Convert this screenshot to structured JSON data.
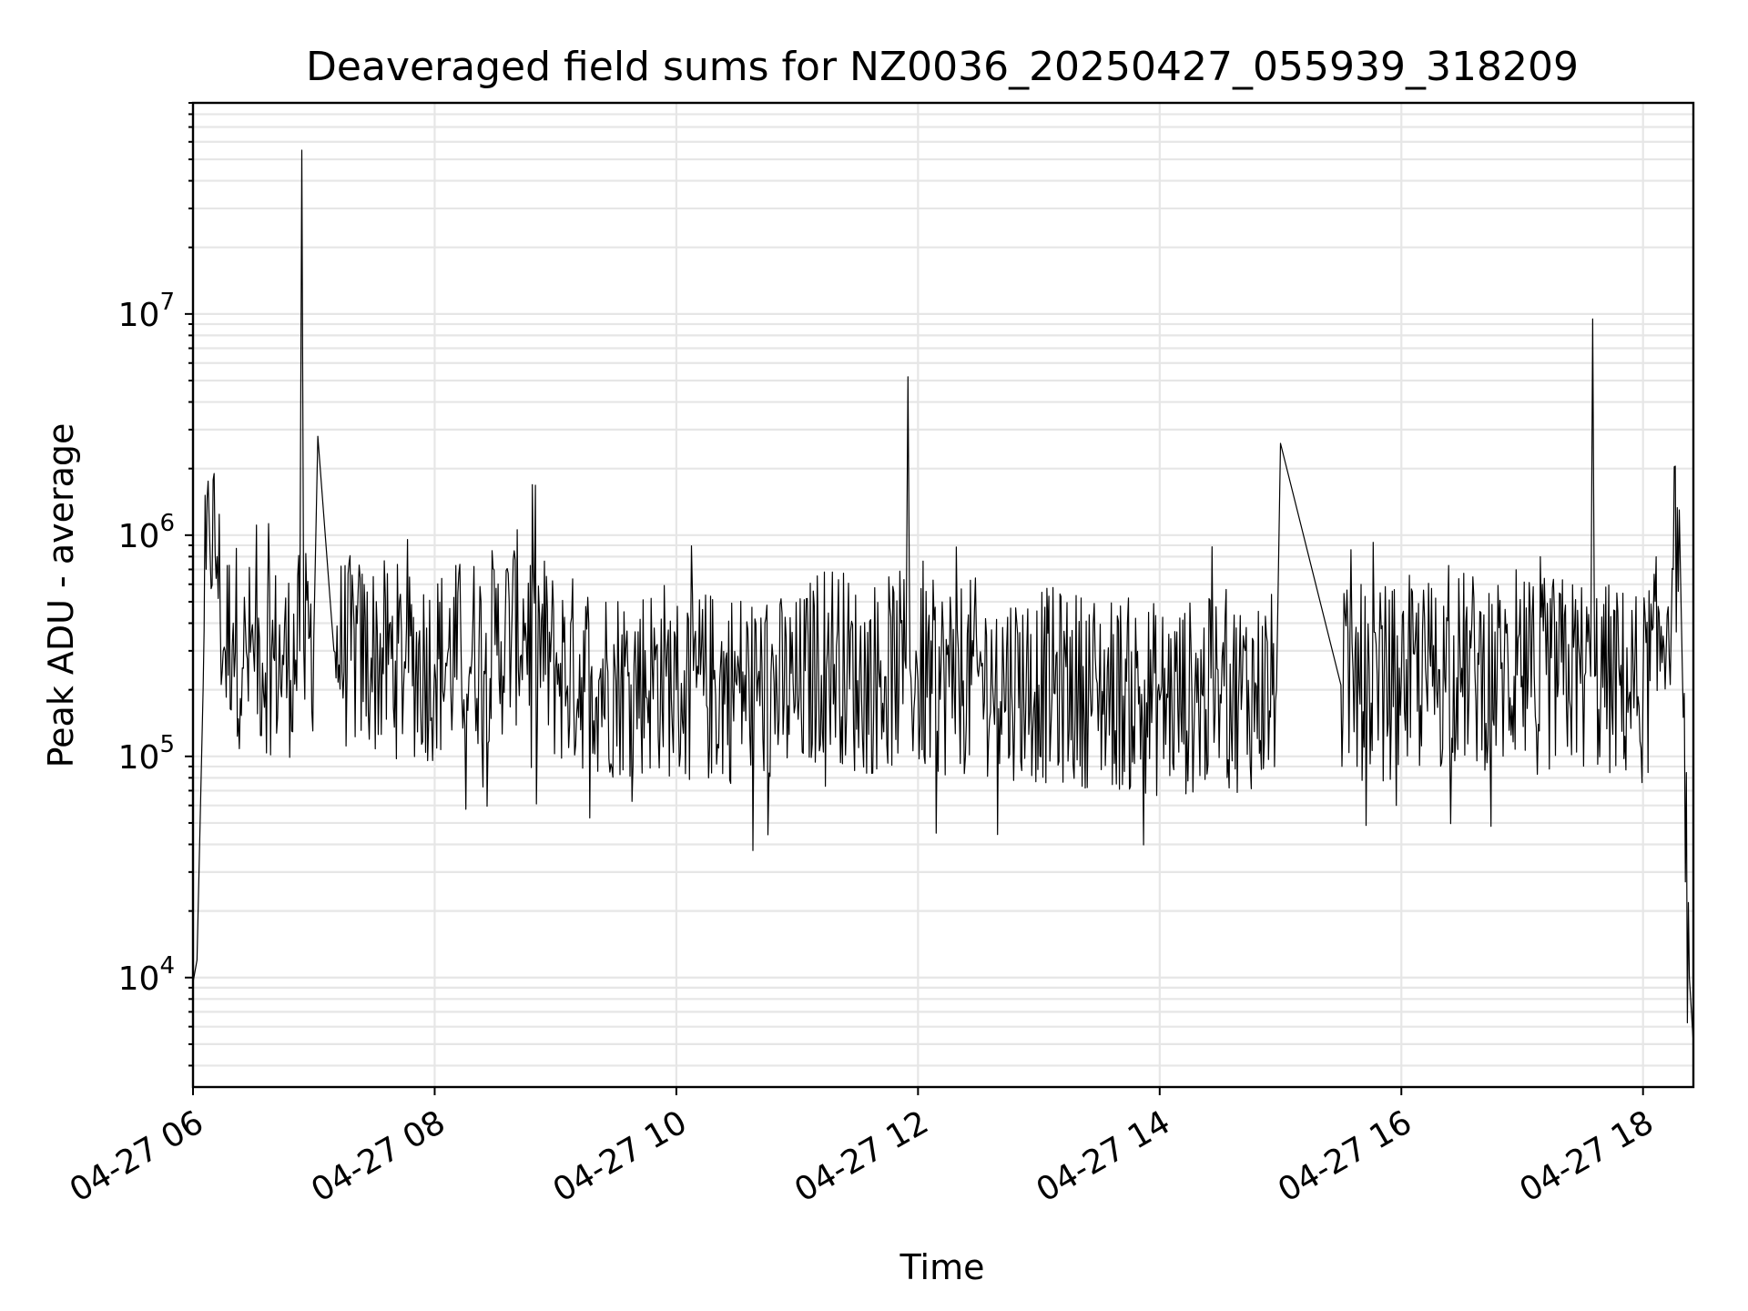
{
  "chart_data": {
    "type": "line",
    "title": "Deaveraged field sums for NZ0036_20250427_055939_318209",
    "xlabel": "Time",
    "ylabel": "Peak ADU - average",
    "yscale": "log",
    "ylim": [
      3200,
      90000000
    ],
    "xlim": [
      "2025-04-27T06:00",
      "2025-04-27T18:25"
    ],
    "grid": true,
    "x_ticks": [
      "04-27 06",
      "04-27 08",
      "04-27 10",
      "04-27 12",
      "04-27 14",
      "04-27 16",
      "04-27 18"
    ],
    "y_ticks": [
      {
        "value": 10000,
        "base": "10",
        "exp": "4"
      },
      {
        "value": 100000,
        "base": "10",
        "exp": "5"
      },
      {
        "value": 1000000,
        "base": "10",
        "exp": "6"
      },
      {
        "value": 10000000,
        "base": "10",
        "exp": "7"
      }
    ],
    "series": [
      {
        "color": "#000000",
        "x": [
          "2025-04-27T06:00",
          "2025-04-27T06:02",
          "2025-04-27T06:05",
          "2025-04-27T06:08",
          "2025-04-27T06:12",
          "2025-04-27T06:15",
          "2025-04-27T06:20",
          "2025-04-27T06:25",
          "2025-04-27T06:30",
          "2025-04-27T06:40",
          "2025-04-27T06:45",
          "2025-04-27T06:53",
          "2025-04-27T06:54",
          "2025-04-27T06:55",
          "2025-04-27T07:00",
          "2025-04-27T07:02",
          "2025-04-27T07:10",
          "2025-04-27T07:30",
          "2025-04-27T08:00",
          "2025-04-27T08:30",
          "2025-04-27T08:45",
          "2025-04-27T09:00",
          "2025-04-27T09:30",
          "2025-04-27T09:55",
          "2025-04-27T10:00",
          "2025-04-27T10:30",
          "2025-04-27T11:00",
          "2025-04-27T11:15",
          "2025-04-27T11:30",
          "2025-04-27T11:54",
          "2025-04-27T11:55",
          "2025-04-27T11:56",
          "2025-04-27T12:00",
          "2025-04-27T12:30",
          "2025-04-27T13:00",
          "2025-04-27T13:30",
          "2025-04-27T14:00",
          "2025-04-27T14:30",
          "2025-04-27T14:58",
          "2025-04-27T15:00",
          "2025-04-27T15:30",
          "2025-04-27T16:00",
          "2025-04-27T16:30",
          "2025-04-27T17:00",
          "2025-04-27T17:30",
          "2025-04-27T17:34",
          "2025-04-27T17:35",
          "2025-04-27T17:36",
          "2025-04-27T18:00",
          "2025-04-27T18:10",
          "2025-04-27T18:15",
          "2025-04-27T18:18",
          "2025-04-27T18:20",
          "2025-04-27T18:23",
          "2025-04-27T18:25"
        ],
        "values": [
          9500,
          12000,
          200000,
          1200000,
          800000,
          300000,
          400000,
          250000,
          300000,
          280000,
          260000,
          300000,
          55000000,
          300000,
          350000,
          2800000,
          300000,
          280000,
          260000,
          320000,
          400000,
          250000,
          220000,
          230000,
          200000,
          210000,
          190000,
          300000,
          220000,
          250000,
          5200000,
          250000,
          220000,
          230000,
          210000,
          200000,
          180000,
          190000,
          200000,
          2600000,
          210000,
          220000,
          250000,
          230000,
          240000,
          230000,
          9500000,
          230000,
          200000,
          350000,
          700000,
          1300000,
          150000,
          10000,
          5000
        ]
      }
    ]
  }
}
